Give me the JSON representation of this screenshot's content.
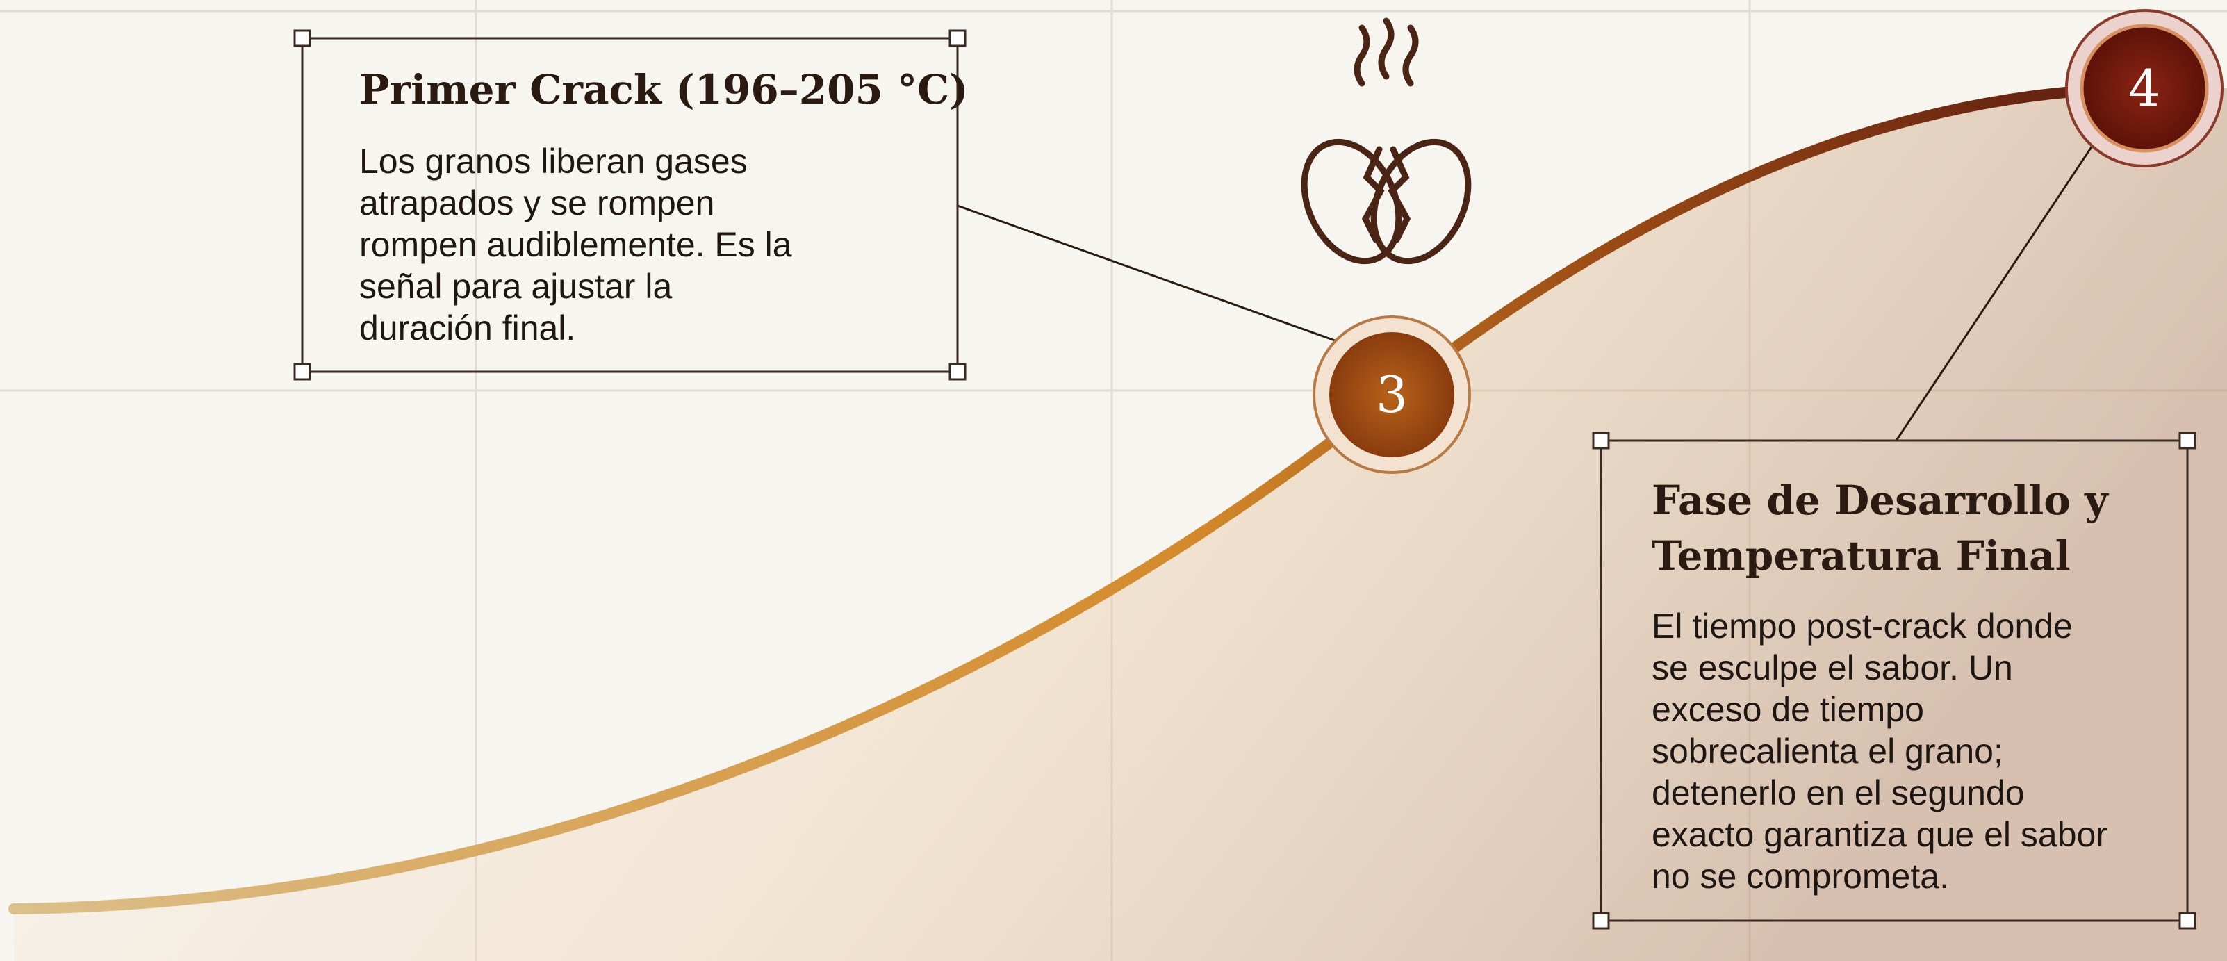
{
  "callouts": [
    {
      "title": [
        "Primer Crack (196–205 °C)"
      ],
      "body": [
        "Los granos liberan gases",
        "atrapados y se rompen",
        "rompen audiblemente. Es la",
        "señal para ajustar la",
        "duración final."
      ]
    },
    {
      "title": [
        "Fase de Desarrollo y",
        "Temperatura Final"
      ],
      "body": [
        "El tiempo post-crack donde",
        "se esculpe el sabor. Un",
        "exceso de tiempo",
        "sobrecalienta el grano;",
        "detenerlo en el segundo",
        "exacto garantiza que el sabor",
        "no se comprometa."
      ]
    }
  ],
  "markers": [
    "3",
    "4"
  ]
}
